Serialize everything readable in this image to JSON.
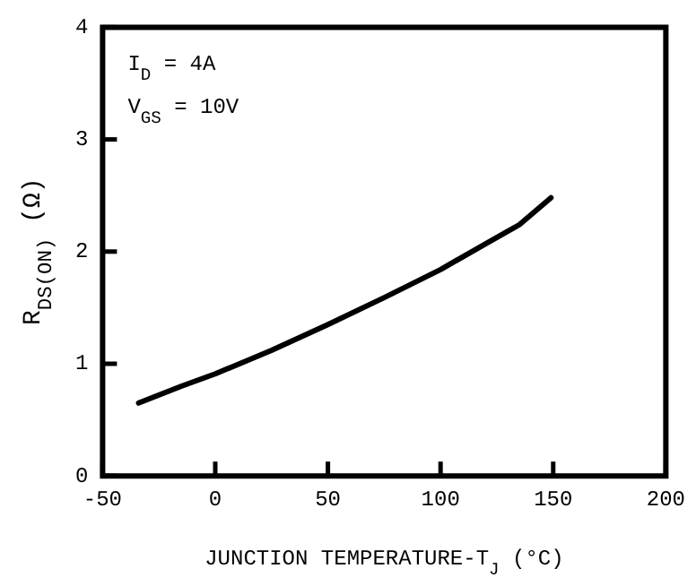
{
  "chart_data": {
    "type": "line",
    "xlabel": "JUNCTION TEMPERATURE-T$_{J}$ (°C)",
    "ylabel": "R$_{DS(ON)}$ (Ω)",
    "annotations": [
      "I$_{D}$ = 4A",
      "V$_{GS}$ = 10V"
    ],
    "series": [
      {
        "color": "#000000",
        "x": [
          -34,
          -15,
          0,
          25,
          50,
          75,
          100,
          120,
          135,
          149
        ],
        "values": [
          0.65,
          0.8,
          0.91,
          1.12,
          1.35,
          1.59,
          1.84,
          2.07,
          2.24,
          2.48
        ]
      }
    ],
    "xlim": [
      -50,
      200
    ],
    "xticks": [
      -50,
      0,
      50,
      100,
      150,
      200
    ],
    "ylim": [
      0,
      4
    ],
    "yticks": [
      0,
      1,
      2,
      3,
      4
    ],
    "grid": false,
    "legend": false,
    "marker": "none",
    "line_style": "solid"
  }
}
